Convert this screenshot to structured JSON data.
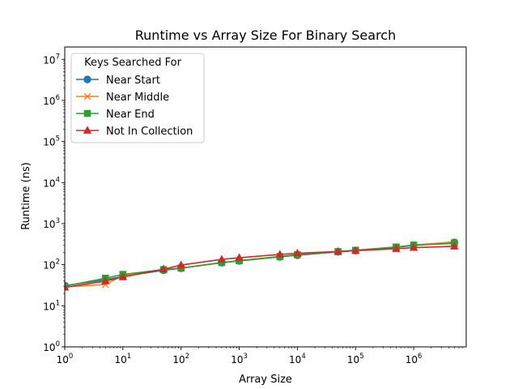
{
  "chart_data": {
    "type": "line",
    "title": "Runtime vs Array Size For Binary Search",
    "xlabel": "Array Size",
    "ylabel": "Runtime (ns)",
    "xscale": "log",
    "yscale": "log",
    "xlim": [
      1,
      8000000
    ],
    "ylim": [
      1,
      20000000
    ],
    "grid": false,
    "legend": {
      "title": "Keys Searched For",
      "placement": "upper-left"
    },
    "x_ticks": [
      {
        "value": 1,
        "base": "10",
        "exp": "0"
      },
      {
        "value": 10,
        "base": "10",
        "exp": "1"
      },
      {
        "value": 100,
        "base": "10",
        "exp": "2"
      },
      {
        "value": 1000,
        "base": "10",
        "exp": "3"
      },
      {
        "value": 10000,
        "base": "10",
        "exp": "4"
      },
      {
        "value": 100000,
        "base": "10",
        "exp": "5"
      },
      {
        "value": 1000000,
        "base": "10",
        "exp": "6"
      }
    ],
    "y_ticks": [
      {
        "value": 1,
        "base": "10",
        "exp": "0"
      },
      {
        "value": 10,
        "base": "10",
        "exp": "1"
      },
      {
        "value": 100,
        "base": "10",
        "exp": "2"
      },
      {
        "value": 1000,
        "base": "10",
        "exp": "3"
      },
      {
        "value": 10000,
        "base": "10",
        "exp": "4"
      },
      {
        "value": 100000,
        "base": "10",
        "exp": "5"
      },
      {
        "value": 1000000,
        "base": "10",
        "exp": "6"
      },
      {
        "value": 10000000,
        "base": "10",
        "exp": "7"
      }
    ],
    "series": [
      {
        "name": "Near Start",
        "color": "#1f77b4",
        "marker": "circle",
        "x": [
          1,
          5,
          10,
          50,
          100,
          500,
          1000,
          5000,
          10000,
          50000,
          100000,
          500000,
          1000000,
          5000000
        ],
        "y": [
          31,
          43,
          52,
          73,
          82,
          112,
          124,
          155,
          170,
          205,
          220,
          265,
          295,
          350
        ]
      },
      {
        "name": "Near Middle",
        "color": "#ff7f0e",
        "marker": "x",
        "x": [
          1,
          5,
          10,
          50,
          100,
          500,
          1000,
          5000,
          10000,
          50000,
          100000,
          500000,
          1000000,
          5000000
        ],
        "y": [
          29,
          33,
          55,
          77,
          83,
          112,
          126,
          158,
          175,
          210,
          225,
          270,
          300,
          360
        ]
      },
      {
        "name": "Near End",
        "color": "#2ca02c",
        "marker": "square",
        "x": [
          1,
          5,
          10,
          50,
          100,
          500,
          1000,
          5000,
          10000,
          50000,
          100000,
          500000,
          1000000,
          5000000
        ],
        "y": [
          30,
          47,
          58,
          76,
          83,
          113,
          125,
          158,
          175,
          208,
          225,
          270,
          300,
          330
        ]
      },
      {
        "name": "Not In Collection",
        "color": "#d62728",
        "marker": "triangle",
        "x": [
          1,
          5,
          10,
          50,
          100,
          500,
          1000,
          5000,
          10000,
          50000,
          100000,
          500000,
          1000000,
          5000000
        ],
        "y": [
          28,
          40,
          50,
          78,
          98,
          135,
          148,
          178,
          190,
          210,
          220,
          245,
          260,
          280
        ]
      }
    ]
  }
}
